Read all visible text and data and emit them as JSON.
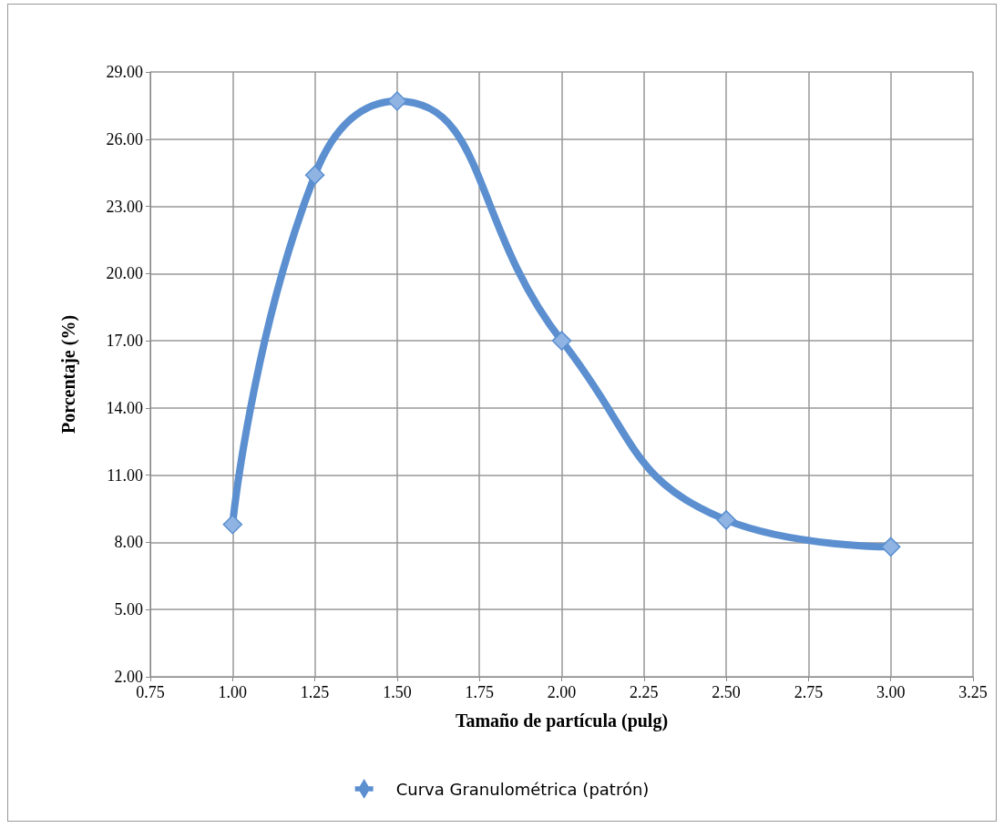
{
  "chart_data": {
    "type": "line",
    "xlabel": "Tamaño de partícula (pulg)",
    "ylabel": "Porcentaje (%)",
    "x": [
      1.0,
      1.25,
      1.5,
      2.0,
      2.5,
      3.0
    ],
    "series": [
      {
        "name": "Curva Granulométrica (patrón)",
        "color": "#5b8fd0",
        "values": [
          8.8,
          24.4,
          27.7,
          17.0,
          9.0,
          7.8
        ]
      }
    ],
    "xlim": [
      0.75,
      3.25
    ],
    "xticks": [
      {
        "value": 0.75,
        "label": "0.75"
      },
      {
        "value": 1,
        "label": "1.00"
      },
      {
        "value": 1.25,
        "label": "1.25"
      },
      {
        "value": 1.5,
        "label": "1.50"
      },
      {
        "value": 1.75,
        "label": "1.75"
      },
      {
        "value": 2,
        "label": "2.00"
      },
      {
        "value": 2.25,
        "label": "2.25"
      },
      {
        "value": 2.5,
        "label": "2.50"
      },
      {
        "value": 2.75,
        "label": "2.75"
      },
      {
        "value": 3,
        "label": "3.00"
      },
      {
        "value": 3.25,
        "label": "3.25"
      }
    ],
    "ylim": [
      2,
      29
    ],
    "yticks": [
      {
        "value": 2,
        "label": "2.00"
      },
      {
        "value": 5,
        "label": "5.00"
      },
      {
        "value": 8,
        "label": "8.00"
      },
      {
        "value": 11,
        "label": "11.00"
      },
      {
        "value": 14,
        "label": "14.00"
      },
      {
        "value": 17,
        "label": "17.00"
      },
      {
        "value": 20,
        "label": "20.00"
      },
      {
        "value": 23,
        "label": "23.00"
      },
      {
        "value": 26,
        "label": "26.00"
      },
      {
        "value": 29,
        "label": "29.00"
      }
    ],
    "grid": true,
    "legend": "bottom",
    "marker": "diamond",
    "line_style": "solid"
  }
}
